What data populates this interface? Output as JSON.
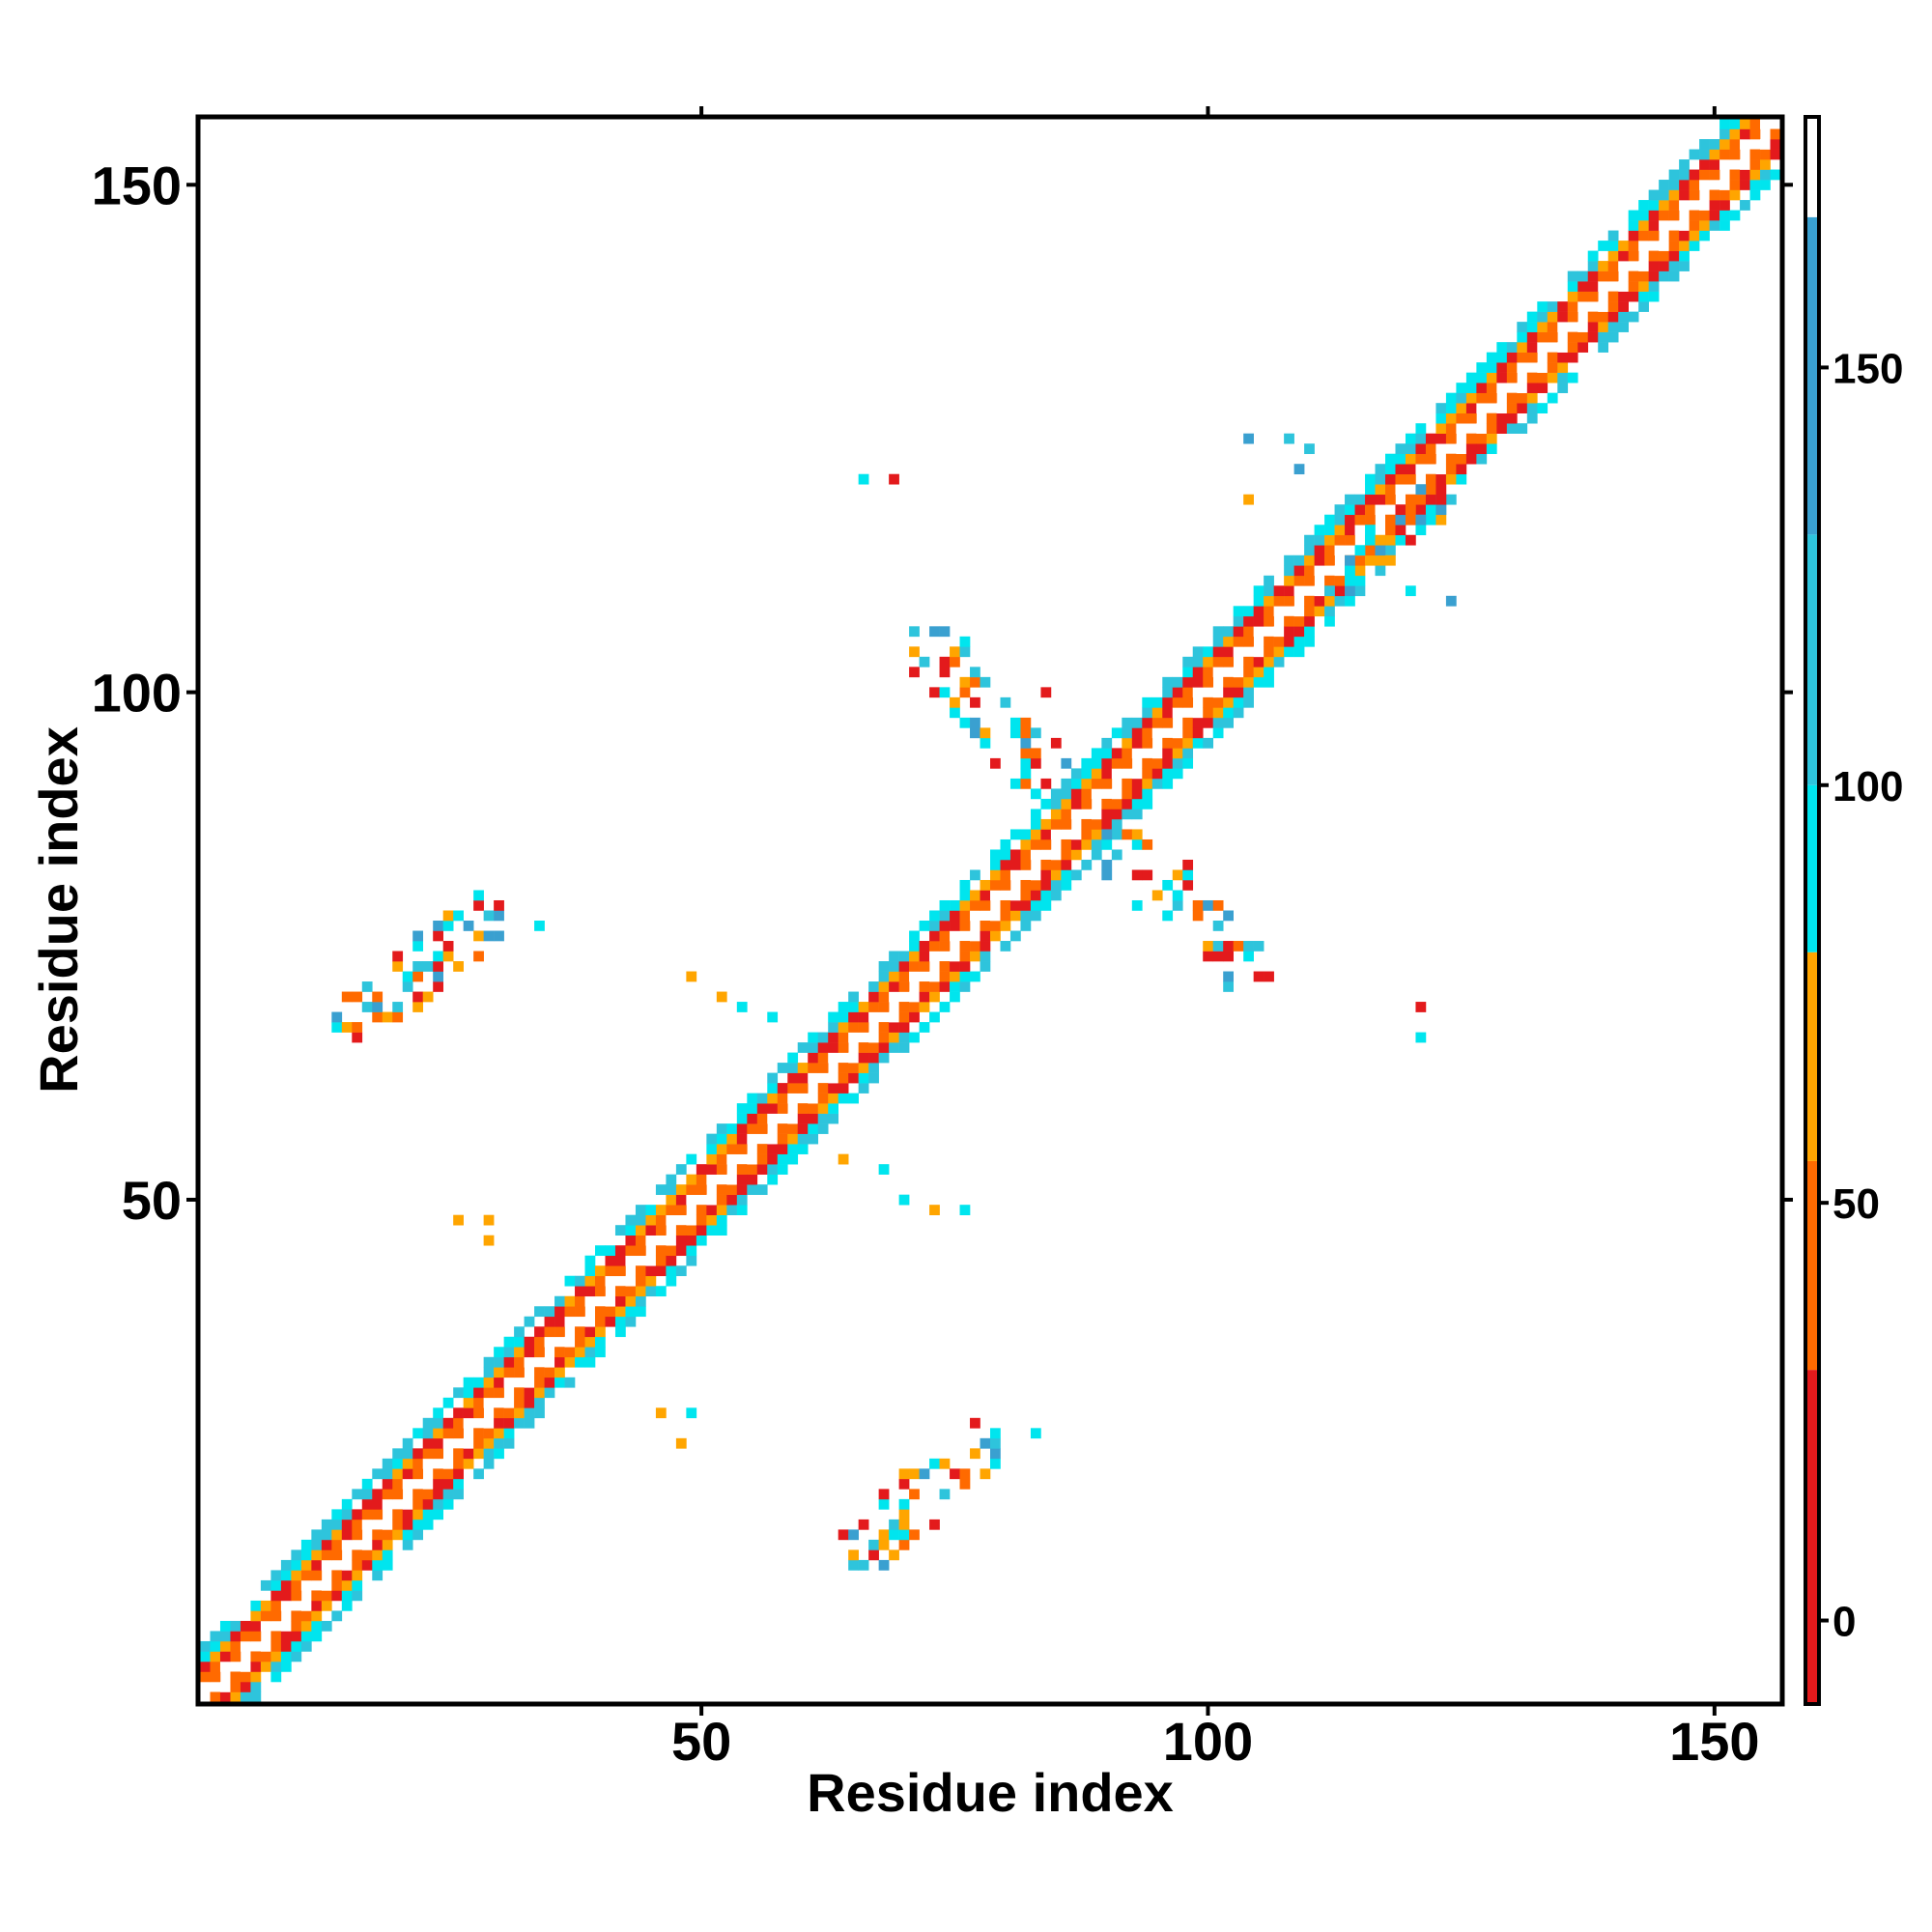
{
  "chart_data": {
    "type": "heatmap",
    "xlabel": "Residue index",
    "ylabel": "Residue index",
    "xlim": [
      1,
      156
    ],
    "ylim": [
      1,
      156
    ],
    "x_ticks": [
      {
        "value": 50,
        "label": "50"
      },
      {
        "value": 100,
        "label": "100"
      },
      {
        "value": 150,
        "label": "150"
      }
    ],
    "y_ticks": [
      {
        "value": 50,
        "label": "50"
      },
      {
        "value": 100,
        "label": "100"
      },
      {
        "value": 150,
        "label": "150"
      }
    ],
    "colorbar": {
      "range": [
        -10,
        180
      ],
      "ticks": [
        {
          "value": 0,
          "label": "0"
        },
        {
          "value": 50,
          "label": "50"
        },
        {
          "value": 100,
          "label": "100"
        },
        {
          "value": 150,
          "label": "150"
        }
      ],
      "bands": [
        {
          "from": -10,
          "to": 30,
          "color": "#e31a1c"
        },
        {
          "from": 30,
          "to": 55,
          "color": "#ff6a00"
        },
        {
          "from": 55,
          "to": 80,
          "color": "#ffa500"
        },
        {
          "from": 80,
          "to": 100,
          "color": "#00e5ee"
        },
        {
          "from": 100,
          "to": 130,
          "color": "#2ec4dc"
        },
        {
          "from": 130,
          "to": 168,
          "color": "#3aa0d0"
        },
        {
          "from": 168,
          "to": 180,
          "color": "#ffffff"
        }
      ]
    },
    "diagonal_band": {
      "from": 1,
      "to": 156,
      "half_width": 5
    },
    "off_diagonal_clusters": [
      {
        "x_from": 14,
        "x_to": 30,
        "y_from": 66,
        "y_to": 79,
        "density": 0.45
      },
      {
        "x_from": 64,
        "x_to": 80,
        "y_from": 14,
        "y_to": 28,
        "density": 0.45
      },
      {
        "x_from": 71,
        "x_to": 86,
        "y_from": 90,
        "y_to": 106,
        "density": 0.35
      },
      {
        "x_from": 90,
        "x_to": 106,
        "y_from": 71,
        "y_to": 86,
        "density": 0.35
      },
      {
        "x_from": 112,
        "x_to": 124,
        "y_from": 110,
        "y_to": 120,
        "density": 0.3
      },
      {
        "x_from": 104,
        "x_to": 110,
        "y_from": 118,
        "y_to": 125,
        "density": 0.2
      }
    ],
    "scattered_points": [
      {
        "x": 66,
        "y": 121,
        "value": 90
      },
      {
        "x": 69,
        "y": 121,
        "value": 10
      },
      {
        "x": 104,
        "y": 125,
        "value": 140
      },
      {
        "x": 108,
        "y": 125,
        "value": 120
      },
      {
        "x": 120,
        "y": 110,
        "value": 90
      },
      {
        "x": 124,
        "y": 109,
        "value": 150
      },
      {
        "x": 121,
        "y": 69,
        "value": 10
      },
      {
        "x": 121,
        "y": 66,
        "value": 90
      },
      {
        "x": 29,
        "y": 48,
        "value": 60
      },
      {
        "x": 26,
        "y": 48,
        "value": 60
      },
      {
        "x": 29,
        "y": 46,
        "value": 60
      },
      {
        "x": 46,
        "y": 29,
        "value": 60
      },
      {
        "x": 48,
        "y": 26,
        "value": 60
      },
      {
        "x": 49,
        "y": 29,
        "value": 90
      },
      {
        "x": 49,
        "y": 72,
        "value": 60
      },
      {
        "x": 52,
        "y": 70,
        "value": 60
      },
      {
        "x": 54,
        "y": 69,
        "value": 90
      },
      {
        "x": 57,
        "y": 68,
        "value": 90
      },
      {
        "x": 64,
        "y": 54,
        "value": 60
      },
      {
        "x": 68,
        "y": 53,
        "value": 90
      },
      {
        "x": 70,
        "y": 50,
        "value": 90
      },
      {
        "x": 73,
        "y": 49,
        "value": 60
      },
      {
        "x": 76,
        "y": 49,
        "value": 90
      },
      {
        "x": 34,
        "y": 77,
        "value": 90
      },
      {
        "x": 28,
        "y": 80,
        "value": 90
      },
      {
        "x": 83,
        "y": 27,
        "value": 90
      },
      {
        "x": 84,
        "y": 100,
        "value": 10
      },
      {
        "x": 98,
        "y": 83,
        "value": 10
      }
    ]
  }
}
